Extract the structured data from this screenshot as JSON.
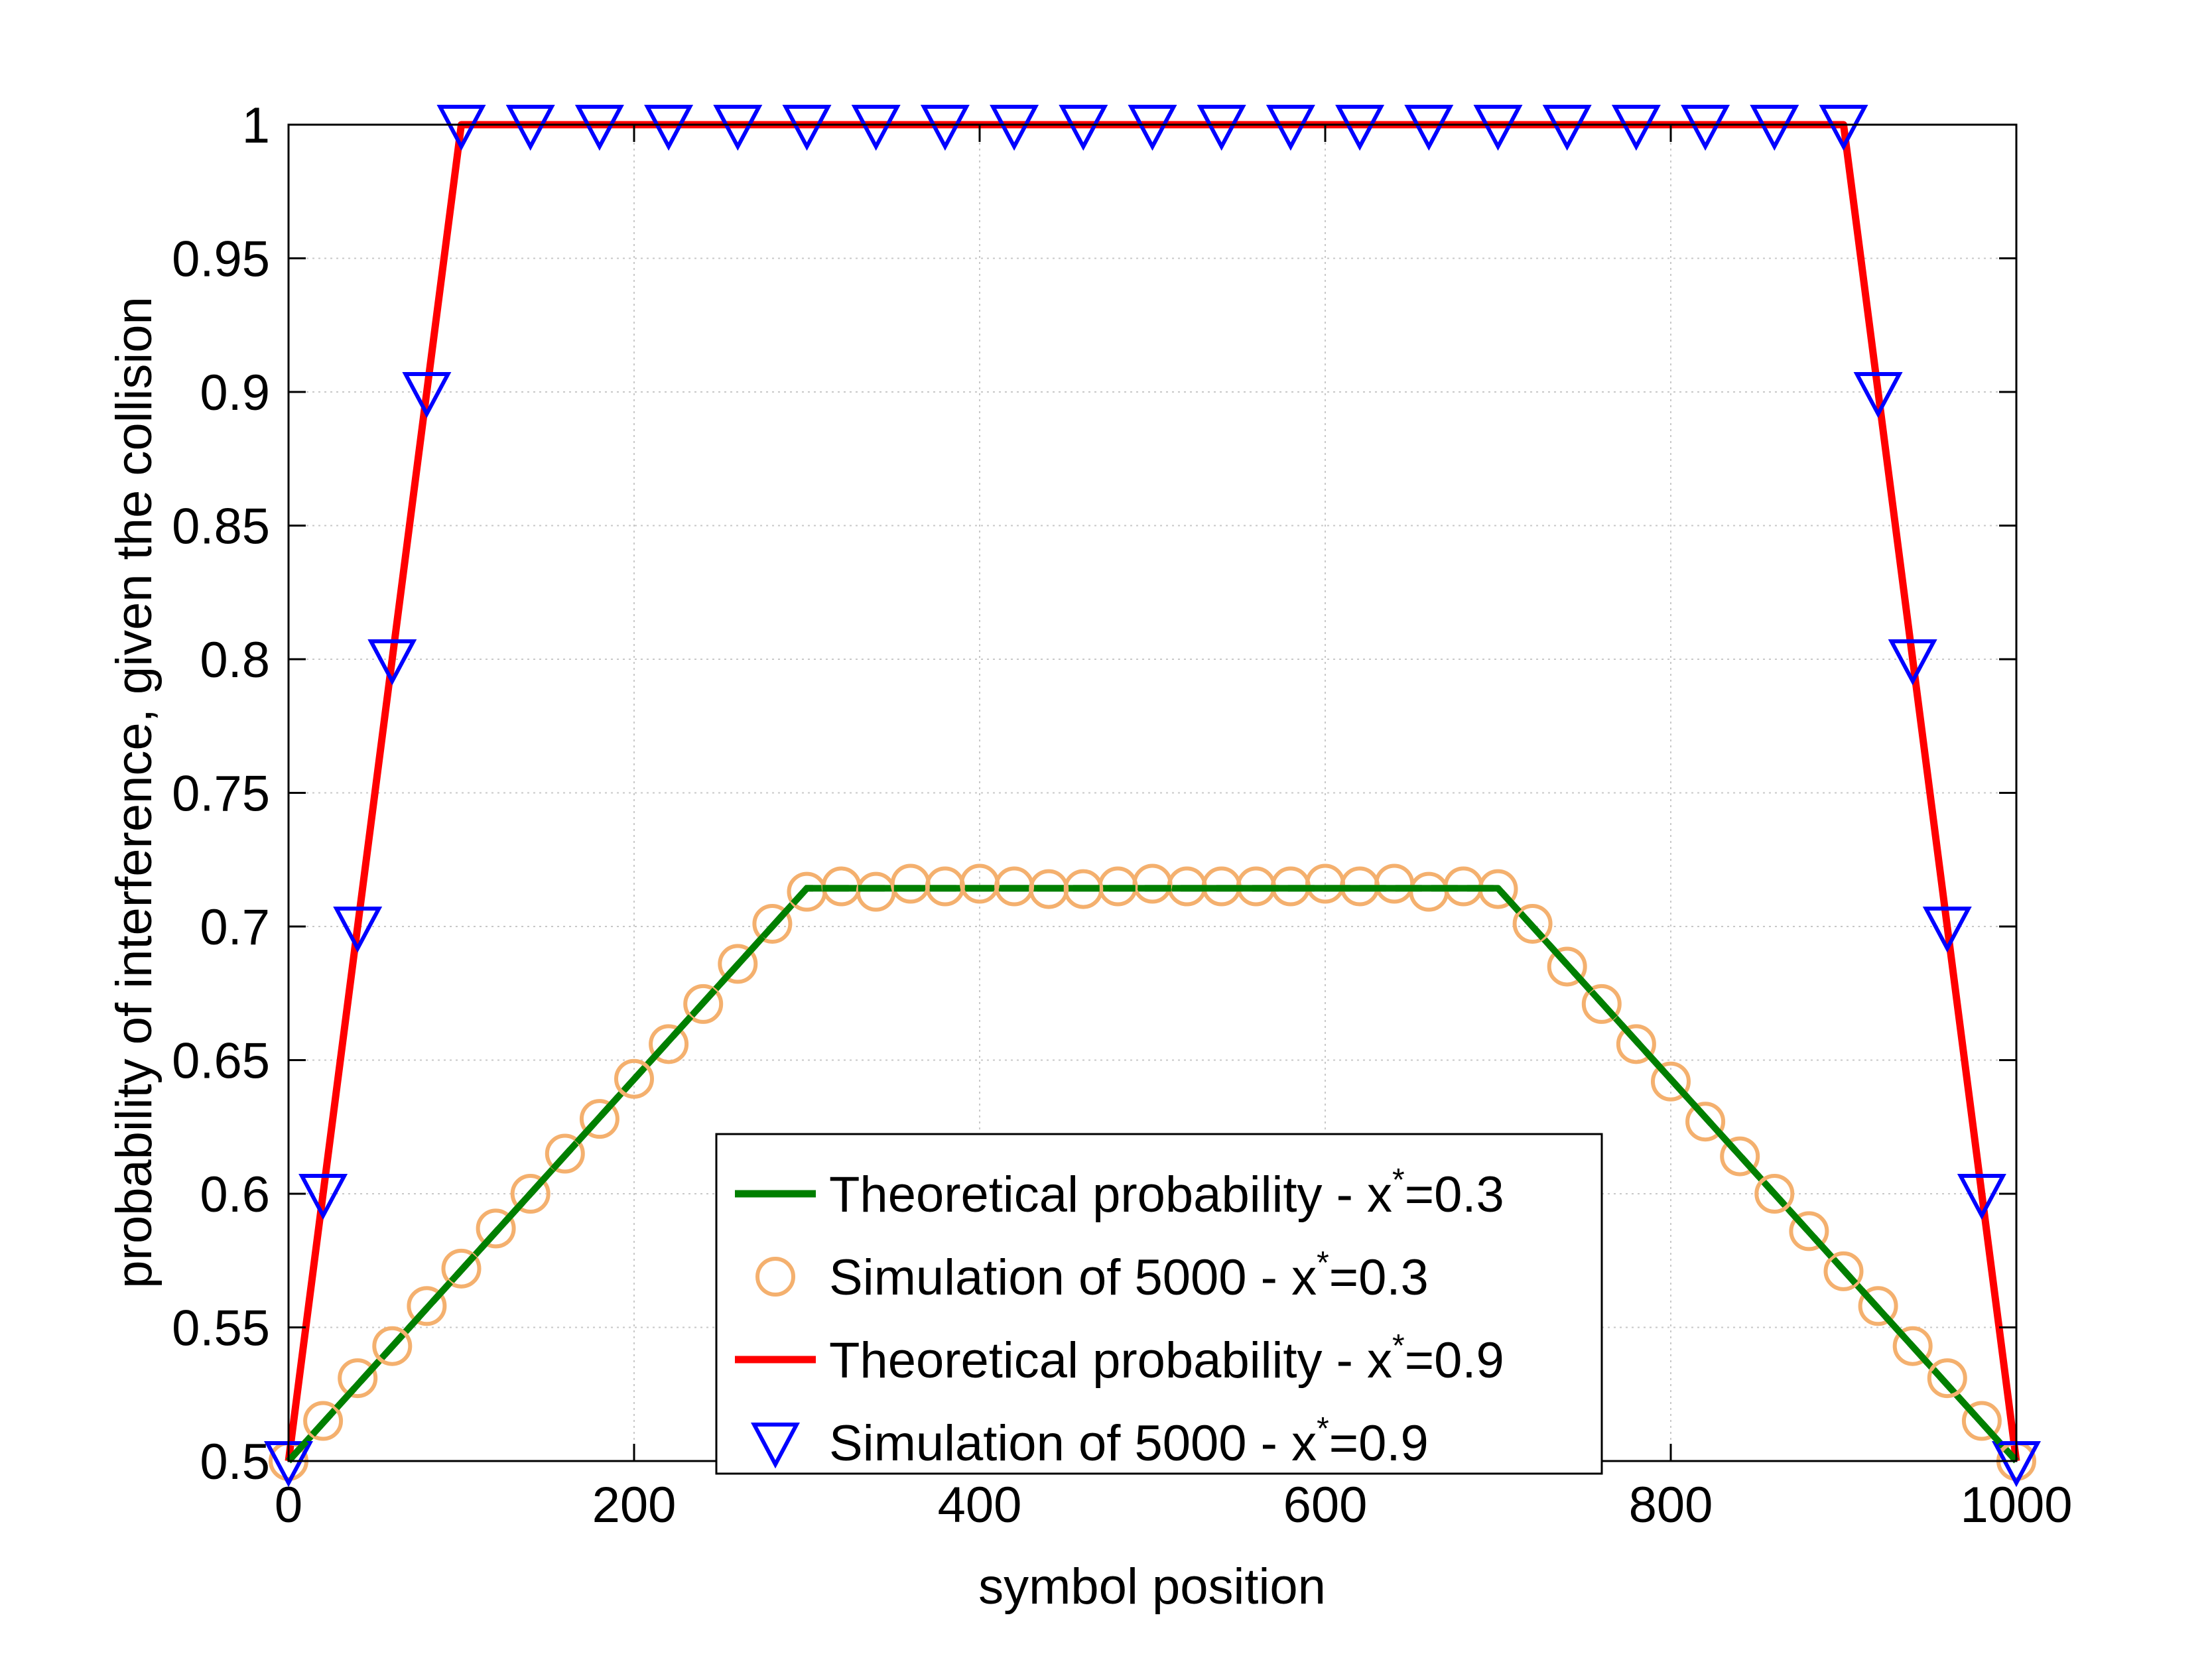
{
  "chart_data": {
    "type": "line",
    "xlabel": "symbol position",
    "ylabel": "probability of interference, given the collision",
    "xlim": [
      0,
      1000
    ],
    "ylim": [
      0.5,
      1.0
    ],
    "xticks": [
      0,
      200,
      400,
      600,
      800,
      1000
    ],
    "yticks": [
      0.5,
      0.55,
      0.6,
      0.65,
      0.7,
      0.75,
      0.8,
      0.85,
      0.9,
      0.95,
      1.0
    ],
    "xtick_labels": [
      "0",
      "200",
      "400",
      "600",
      "800",
      "1000"
    ],
    "ytick_labels": [
      "0.5",
      "0.55",
      "0.6",
      "0.65",
      "0.7",
      "0.75",
      "0.8",
      "0.85",
      "0.9",
      "0.95",
      "1"
    ],
    "grid": true,
    "legend_position": "bottom-center",
    "series": [
      {
        "name": "Theoretical probability - x*=0.3",
        "legend_main": "Theoretical probability - x",
        "legend_sup": "*",
        "legend_tail": "=0.3",
        "style": "line",
        "color": "#007f00",
        "x": [
          0,
          300,
          700,
          1000
        ],
        "y": [
          0.5,
          0.7143,
          0.7143,
          0.5
        ]
      },
      {
        "name": "Simulation of 5000 - x*=0.3",
        "legend_main": "Simulation of 5000 - x",
        "legend_sup": "*",
        "legend_tail": "=0.3",
        "style": "marker-circle",
        "color": "#f4b06e",
        "x": [
          0,
          20,
          40,
          60,
          80,
          100,
          120,
          140,
          160,
          180,
          200,
          220,
          240,
          260,
          280,
          300,
          320,
          340,
          360,
          380,
          400,
          420,
          440,
          460,
          480,
          500,
          520,
          540,
          560,
          580,
          600,
          620,
          640,
          660,
          680,
          700,
          720,
          740,
          760,
          780,
          800,
          820,
          840,
          860,
          880,
          900,
          920,
          940,
          960,
          980,
          1000
        ],
        "y": [
          0.5,
          0.515,
          0.531,
          0.543,
          0.558,
          0.572,
          0.587,
          0.6,
          0.615,
          0.628,
          0.643,
          0.656,
          0.671,
          0.686,
          0.701,
          0.713,
          0.715,
          0.713,
          0.716,
          0.715,
          0.716,
          0.715,
          0.714,
          0.714,
          0.715,
          0.716,
          0.715,
          0.715,
          0.715,
          0.715,
          0.716,
          0.715,
          0.716,
          0.713,
          0.715,
          0.714,
          0.701,
          0.685,
          0.671,
          0.656,
          0.642,
          0.627,
          0.614,
          0.6,
          0.586,
          0.571,
          0.558,
          0.543,
          0.531,
          0.515,
          0.5
        ]
      },
      {
        "name": "Theoretical probability - x*=0.9",
        "legend_main": "Theoretical probability - x",
        "legend_sup": "*",
        "legend_tail": "=0.9",
        "style": "line",
        "color": "#ff0000",
        "x": [
          0,
          100,
          900,
          1000
        ],
        "y": [
          0.5,
          1.0,
          1.0,
          0.5
        ]
      },
      {
        "name": "Simulation of 5000 - x*=0.9",
        "legend_main": "Simulation of 5000 - x",
        "legend_sup": "*",
        "legend_tail": "=0.9",
        "style": "marker-triangle-down",
        "color": "#0000ff",
        "x": [
          0,
          20,
          40,
          60,
          80,
          100,
          140,
          180,
          220,
          260,
          300,
          340,
          380,
          420,
          460,
          500,
          540,
          580,
          620,
          660,
          700,
          740,
          780,
          820,
          860,
          900,
          920,
          940,
          960,
          980,
          1000
        ],
        "y": [
          0.5,
          0.6,
          0.7,
          0.8,
          0.9,
          1.0,
          1.0,
          1.0,
          1.0,
          1.0,
          1.0,
          1.0,
          1.0,
          1.0,
          1.0,
          1.0,
          1.0,
          1.0,
          1.0,
          1.0,
          1.0,
          1.0,
          1.0,
          1.0,
          1.0,
          1.0,
          0.9,
          0.8,
          0.7,
          0.6,
          0.5
        ]
      }
    ]
  }
}
